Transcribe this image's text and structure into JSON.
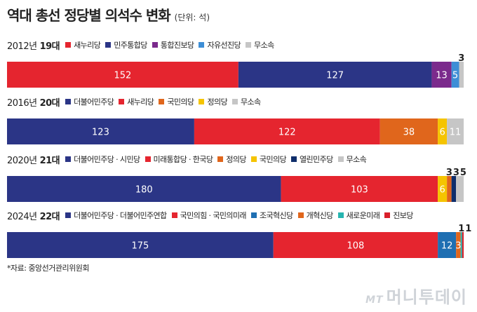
{
  "header": {
    "title": "역대 총선 정당별 의석수 변화",
    "unit": "(단위: 석)"
  },
  "source": "*자료: 중앙선거관리위원회",
  "watermark": {
    "mt": "MT",
    "text": "머니투데이"
  },
  "chart_data": [
    {
      "type": "bar",
      "year": "2012년",
      "session": "19대",
      "series": [
        {
          "name": "새누리당",
          "value": 152,
          "color": "#e5252f",
          "label": "152"
        },
        {
          "name": "민주통합당",
          "value": 127,
          "color": "#2b3586",
          "label": "127"
        },
        {
          "name": "통합진보당",
          "value": 13,
          "color": "#7b2a8c",
          "label": "13"
        },
        {
          "name": "자유선진당",
          "value": 5,
          "color": "#3d8ed6",
          "label": "5"
        },
        {
          "name": "무소속",
          "value": 3,
          "color": "#c6c6c6",
          "label": "3",
          "label_above": true
        }
      ]
    },
    {
      "type": "bar",
      "year": "2016년",
      "session": "20대",
      "series": [
        {
          "name": "더불어민주당",
          "value": 123,
          "color": "#2b3586",
          "label": "123"
        },
        {
          "name": "새누리당",
          "value": 122,
          "color": "#e5252f",
          "label": "122"
        },
        {
          "name": "국민의당",
          "value": 38,
          "color": "#e0661c",
          "label": "38"
        },
        {
          "name": "정의당",
          "value": 6,
          "color": "#f5c400",
          "label": "6"
        },
        {
          "name": "무소속",
          "value": 11,
          "color": "#c6c6c6",
          "label": "11"
        }
      ]
    },
    {
      "type": "bar",
      "year": "2020년",
      "session": "21대",
      "series": [
        {
          "name": "더불어민주당 · 시민당",
          "value": 180,
          "color": "#2b3586",
          "label": "180"
        },
        {
          "name": "미래통합당 · 한국당",
          "value": 103,
          "color": "#e5252f",
          "label": "103"
        },
        {
          "name": "정의당",
          "value": 6,
          "color": "#f5c400",
          "label": "6"
        },
        {
          "name": "국민의당",
          "value": 3,
          "color": "#e0661c",
          "label": "3",
          "label_above": true
        },
        {
          "name": "열린민주당",
          "value": 3,
          "color": "#0f2e6b",
          "label": "3",
          "label_above": true
        },
        {
          "name": "무소속",
          "value": 5,
          "color": "#c6c6c6",
          "label": "5",
          "label_above": true
        }
      ],
      "legend_order": [
        0,
        1,
        2,
        3,
        4,
        5
      ],
      "legend_colors": [
        "#2b3586",
        "#e5252f",
        "#e0661c",
        "#f5c400",
        "#0f2e6b",
        "#c6c6c6"
      ]
    },
    {
      "type": "bar",
      "year": "2024년",
      "session": "22대",
      "series": [
        {
          "name": "더불어민주당 · 더불어민주연합",
          "value": 175,
          "color": "#2b3586",
          "label": "175"
        },
        {
          "name": "국민의힘 · 국민의미래",
          "value": 108,
          "color": "#e5252f",
          "label": "108"
        },
        {
          "name": "조국혁신당",
          "value": 12,
          "color": "#1f6fb2",
          "label": "12"
        },
        {
          "name": "개혁신당",
          "value": 3,
          "color": "#e0661c",
          "label": "3"
        },
        {
          "name": "새로운미래",
          "value": 1,
          "color": "#27b5b0",
          "label": "1",
          "label_above": true
        },
        {
          "name": "진보당",
          "value": 1,
          "color": "#d91f2a",
          "label": "1",
          "label_above": true
        }
      ]
    }
  ]
}
